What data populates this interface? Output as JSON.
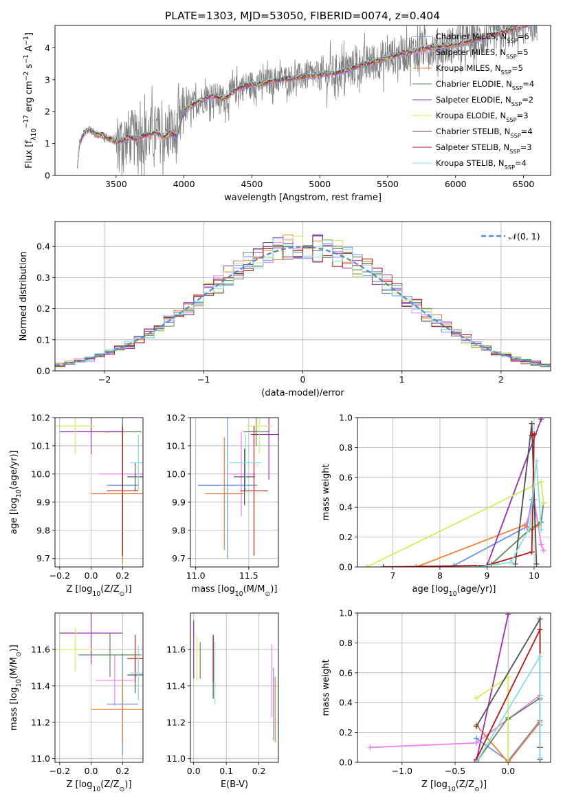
{
  "figure_title": "PLATE=1303, MJD=53050, FIBERID=0074, z=0.404",
  "colors": {
    "Chabrier MILES": "#6495ed",
    "Salpeter MILES": "#ee82ee",
    "Kroupa MILES": "#f08030",
    "Chabrier ELODIE": "#5f8a5f",
    "Salpeter ELODIE": "#9a2fb0",
    "Kroupa ELODIE": "#d4ec5a",
    "Chabrier STELIB": "#505050",
    "Salpeter STELIB": "#b01818",
    "Kroupa STELIB": "#88dde4",
    "normal": "#5a8ad0",
    "grid": "#b0b0b0"
  },
  "chart_data": [
    {
      "id": "spectrum",
      "type": "line",
      "title": "",
      "xlabel": "wavelength [Angstrom, rest frame]",
      "ylabel_parts": [
        "Flux [f",
        "λ",
        "10",
        "−17",
        " erg cm",
        "−2",
        " s",
        "−1",
        " A",
        "−1",
        "]"
      ],
      "xlim": [
        3050,
        6700
      ],
      "ylim": [
        0,
        4.7
      ],
      "xticks": [
        3500,
        4000,
        4500,
        5000,
        5500,
        6000,
        6500
      ],
      "yticks": [
        0,
        1,
        2,
        3,
        4
      ],
      "grid": false,
      "legend_position": "right",
      "legend": [
        {
          "label": "Chabrier MILES, N",
          "sub": "SSP",
          "suffix": "=6"
        },
        {
          "label": "Salpeter MILES, N",
          "sub": "SSP",
          "suffix": "=5"
        },
        {
          "label": "Kroupa MILES, N",
          "sub": "SSP",
          "suffix": "=5"
        },
        {
          "label": "Chabrier ELODIE, N",
          "sub": "SSP",
          "suffix": "=4"
        },
        {
          "label": "Salpeter ELODIE, N",
          "sub": "SSP",
          "suffix": "=2"
        },
        {
          "label": "Kroupa ELODIE, N",
          "sub": "SSP",
          "suffix": "=3"
        },
        {
          "label": "Chabrier STELIB, N",
          "sub": "SSP",
          "suffix": "=4"
        },
        {
          "label": "Salpeter STELIB, N",
          "sub": "SSP",
          "suffix": "=3"
        },
        {
          "label": "Kroupa STELIB, N",
          "sub": "SSP",
          "suffix": "=4"
        }
      ],
      "model_continuum": {
        "x": [
          3210,
          3230,
          3260,
          3300,
          3350,
          3400,
          3450,
          3500,
          3550,
          3600,
          3650,
          3700,
          3750,
          3800,
          3850,
          3900,
          3950,
          4000,
          4100,
          4200,
          4300,
          4400,
          4500,
          4600,
          4700,
          4800,
          4900,
          5000,
          5100,
          5200,
          5300,
          5400,
          5500,
          5600,
          5700,
          5800,
          5900,
          6000,
          6100,
          6200,
          6300,
          6400,
          6500,
          6600
        ],
        "y": [
          0.0,
          1.0,
          1.3,
          1.45,
          1.3,
          1.25,
          1.15,
          1.05,
          1.1,
          1.2,
          1.15,
          1.25,
          1.3,
          1.35,
          1.2,
          1.3,
          1.25,
          2.05,
          2.3,
          2.5,
          2.4,
          2.75,
          2.85,
          2.9,
          3.0,
          3.05,
          3.1,
          3.15,
          3.2,
          3.3,
          3.45,
          3.55,
          3.7,
          3.8,
          3.9,
          4.0,
          4.05,
          4.1,
          4.2,
          4.3,
          4.45,
          4.55,
          4.7,
          4.8
        ]
      }
    },
    {
      "id": "residuals",
      "type": "histogram",
      "xlabel": "(data-model)/error",
      "ylabel": "Normed distribution",
      "xlim": [
        -2.5,
        2.5
      ],
      "ylim": [
        0,
        0.48
      ],
      "xticks": [
        -2,
        -1,
        0,
        1,
        2
      ],
      "yticks": [
        0.0,
        0.1,
        0.2,
        0.3,
        0.4
      ],
      "grid": true,
      "legend_position": "top-right",
      "legend": [
        "𝒩(0, 1)"
      ],
      "bin_width": 0.1
    },
    {
      "id": "age-vs-Z",
      "type": "scatter",
      "xlabel_parts": [
        "Z [log",
        "10",
        "(Z/Z",
        "⊙",
        ")]"
      ],
      "ylabel_parts": [
        "age  [log",
        "10",
        "(age/yr)]"
      ],
      "xlim": [
        -0.23,
        0.33
      ],
      "ylim": [
        9.67,
        10.2
      ],
      "xticks": [
        -0.2,
        0.0,
        0.2
      ],
      "yticks": [
        9.7,
        9.8,
        9.9,
        10.0,
        10.1,
        10.2
      ],
      "grid": true,
      "points": [
        {
          "model": "Chabrier MILES",
          "x": 0.2,
          "xerr": 0.1,
          "y": 9.96,
          "yerr": 0.26
        },
        {
          "model": "Salpeter MILES",
          "x": 0.2,
          "xerr": 0.15,
          "y": 10.0,
          "yerr": 0.12
        },
        {
          "model": "Kroupa MILES",
          "x": 0.2,
          "xerr": 0.2,
          "y": 9.93,
          "yerr": 0.25
        },
        {
          "model": "Chabrier ELODIE",
          "x": 0.2,
          "xerr": 0.12,
          "y": 10.15,
          "yerr": 0.05
        },
        {
          "model": "Salpeter ELODIE",
          "x": 0.0,
          "xerr": 0.2,
          "y": 10.15,
          "yerr": 0.08
        },
        {
          "model": "Kroupa ELODIE",
          "x": -0.1,
          "xerr": 0.12,
          "y": 10.17,
          "yerr": 0.1
        },
        {
          "model": "Chabrier STELIB",
          "x": 0.28,
          "xerr": 0.05,
          "y": 9.99,
          "yerr": 0.05
        },
        {
          "model": "Salpeter STELIB",
          "x": 0.2,
          "xerr": 0.1,
          "y": 9.94,
          "yerr": 0.23
        },
        {
          "model": "Kroupa STELIB",
          "x": 0.3,
          "xerr": 0.05,
          "y": 10.04,
          "yerr": 0.1
        }
      ]
    },
    {
      "id": "age-vs-mass",
      "type": "scatter",
      "xlabel_parts": [
        "mass [log",
        "10",
        "(M/M",
        "⊙",
        ")]"
      ],
      "ylabel_parts": [],
      "xlim": [
        10.95,
        11.78
      ],
      "ylim": [
        9.67,
        10.2
      ],
      "xticks": [
        11.0,
        11.5
      ],
      "yticks": [
        9.7,
        9.8,
        9.9,
        10.0,
        10.1,
        10.2
      ],
      "grid": true,
      "points": [
        {
          "model": "Chabrier MILES",
          "x": 11.3,
          "xerr": 0.28,
          "y": 9.96,
          "yerr": 0.26
        },
        {
          "model": "Salpeter MILES",
          "x": 11.43,
          "xerr": 0.14,
          "y": 10.0,
          "yerr": 0.15
        },
        {
          "model": "Kroupa MILES",
          "x": 11.27,
          "xerr": 0.18,
          "y": 9.93,
          "yerr": 0.2
        },
        {
          "model": "Chabrier ELODIE",
          "x": 11.57,
          "xerr": 0.12,
          "y": 10.15,
          "yerr": 0.05
        },
        {
          "model": "Salpeter ELODIE",
          "x": 11.69,
          "xerr": 0.17,
          "y": 10.14,
          "yerr": 0.16
        },
        {
          "model": "Kroupa ELODIE",
          "x": 11.6,
          "xerr": 0.12,
          "y": 10.17,
          "yerr": 0.1
        },
        {
          "model": "Chabrier STELIB",
          "x": 11.46,
          "xerr": 0.1,
          "y": 9.99,
          "yerr": 0.1
        },
        {
          "model": "Salpeter STELIB",
          "x": 11.55,
          "xerr": 0.13,
          "y": 9.94,
          "yerr": 0.23
        },
        {
          "model": "Kroupa STELIB",
          "x": 11.47,
          "xerr": 0.15,
          "y": 10.04,
          "yerr": 0.1
        }
      ]
    },
    {
      "id": "weight-vs-age",
      "type": "line",
      "xlabel_parts": [
        "age  [log",
        "10",
        "(age/yr)]"
      ],
      "ylabel": "mass weight",
      "xlim": [
        6.25,
        10.35
      ],
      "ylim": [
        0,
        1
      ],
      "xticks": [
        7,
        8,
        9,
        10
      ],
      "yticks": [
        0.0,
        0.2,
        0.4,
        0.6,
        0.8,
        1.0
      ],
      "grid": true,
      "series": [
        {
          "model": "Chabrier MILES",
          "x": [
            8.3,
            9.85,
            9.95,
            10.1
          ],
          "y": [
            0.01,
            0.27,
            0.45,
            0.28
          ]
        },
        {
          "model": "Salpeter MILES",
          "x": [
            9.8,
            10.0,
            10.15,
            10.2
          ],
          "y": [
            0.26,
            0.45,
            0.15,
            0.11
          ]
        },
        {
          "model": "Kroupa MILES",
          "x": [
            7.5,
            9.8,
            9.95,
            10.1
          ],
          "y": [
            0.0,
            0.28,
            0.25,
            0.28
          ]
        },
        {
          "model": "Chabrier ELODIE",
          "x": [
            9.1,
            9.9,
            10.15,
            10.2
          ],
          "y": [
            0.02,
            0.25,
            0.3,
            0.43
          ]
        },
        {
          "model": "Salpeter ELODIE",
          "x": [
            9.0,
            10.15
          ],
          "y": [
            0.01,
            0.99
          ]
        },
        {
          "model": "Kroupa ELODIE",
          "x": [
            6.45,
            10.15,
            10.2
          ],
          "y": [
            0.0,
            0.57,
            0.43
          ]
        },
        {
          "model": "Chabrier STELIB",
          "x": [
            9.6,
            9.95,
            10.05
          ],
          "y": [
            0.02,
            0.96,
            0.02
          ]
        },
        {
          "model": "Salpeter STELIB",
          "x": [
            6.8,
            9.0,
            9.95,
            10.0,
            9.95
          ],
          "y": [
            0.0,
            0.01,
            0.1,
            0.89,
            0.88
          ]
        },
        {
          "model": "Kroupa STELIB",
          "x": [
            8.8,
            9.5,
            9.9,
            10.05,
            10.15
          ],
          "y": [
            0.0,
            0.03,
            0.26,
            0.71,
            0.25
          ]
        }
      ]
    },
    {
      "id": "mass-vs-Z",
      "type": "scatter",
      "xlabel_parts": [
        "Z [log",
        "10",
        "(Z/Z",
        "⊙",
        ")]"
      ],
      "ylabel_parts": [
        "mass [log",
        "10",
        "(M/M",
        "⊙",
        ")]"
      ],
      "xlim": [
        -0.23,
        0.33
      ],
      "ylim": [
        10.98,
        11.8
      ],
      "xticks": [
        -0.2,
        0.0,
        0.2
      ],
      "yticks": [
        11.0,
        11.2,
        11.4,
        11.6
      ],
      "grid": true,
      "points": [
        {
          "model": "Chabrier MILES",
          "x": 0.2,
          "xerr": 0.1,
          "y": 11.3,
          "yerr": 0.28
        },
        {
          "model": "Salpeter MILES",
          "x": 0.15,
          "xerr": 0.12,
          "y": 11.43,
          "yerr": 0.14
        },
        {
          "model": "Kroupa MILES",
          "x": 0.2,
          "xerr": 0.2,
          "y": 11.27,
          "yerr": 0.18
        },
        {
          "model": "Chabrier ELODIE",
          "x": 0.12,
          "xerr": 0.2,
          "y": 11.57,
          "yerr": 0.12
        },
        {
          "model": "Salpeter ELODIE",
          "x": 0.0,
          "xerr": 0.2,
          "y": 11.69,
          "yerr": 0.17
        },
        {
          "model": "Kroupa ELODIE",
          "x": -0.1,
          "xerr": 0.12,
          "y": 11.6,
          "yerr": 0.12
        },
        {
          "model": "Chabrier STELIB",
          "x": 0.28,
          "xerr": 0.05,
          "y": 11.46,
          "yerr": 0.1
        },
        {
          "model": "Salpeter STELIB",
          "x": 0.28,
          "xerr": 0.05,
          "y": 11.55,
          "yerr": 0.13
        },
        {
          "model": "Kroupa STELIB",
          "x": 0.3,
          "xerr": 0.05,
          "y": 11.47,
          "yerr": 0.15
        }
      ]
    },
    {
      "id": "mass-vs-EBV",
      "type": "scatter",
      "xlabel": "E(B-V)",
      "ylabel_parts": [],
      "xlim": [
        -0.01,
        0.26
      ],
      "ylim": [
        10.98,
        11.8
      ],
      "xticks": [
        0.0,
        0.1,
        0.2
      ],
      "yticks": [
        11.0,
        11.2,
        11.4,
        11.6
      ],
      "grid": true,
      "points": [
        {
          "model": "Chabrier MILES",
          "x": 0.245,
          "xerr": 0,
          "y": 11.3,
          "yerr": 0.2
        },
        {
          "model": "Salpeter MILES",
          "x": 0.24,
          "xerr": 0,
          "y": 11.43,
          "yerr": 0.2
        },
        {
          "model": "Kroupa MILES",
          "x": 0.25,
          "xerr": 0,
          "y": 11.27,
          "yerr": 0.18
        },
        {
          "model": "Chabrier ELODIE",
          "x": 0.02,
          "xerr": 0,
          "y": 11.54,
          "yerr": 0.1
        },
        {
          "model": "Salpeter ELODIE",
          "x": 0.0,
          "xerr": 0,
          "y": 11.6,
          "yerr": 0.16
        },
        {
          "model": "Kroupa ELODIE",
          "x": 0.01,
          "xerr": 0,
          "y": 11.55,
          "yerr": 0.12
        },
        {
          "model": "Chabrier STELIB",
          "x": 0.06,
          "xerr": 0,
          "y": 11.5,
          "yerr": 0.17
        },
        {
          "model": "Salpeter STELIB",
          "x": 0.06,
          "xerr": 0,
          "y": 11.55,
          "yerr": 0.13
        },
        {
          "model": "Kroupa STELIB",
          "x": 0.065,
          "xerr": 0,
          "y": 11.47,
          "yerr": 0.17
        }
      ]
    },
    {
      "id": "weight-vs-Z",
      "type": "line",
      "xlabel_parts": [
        "Z [log",
        "10",
        "(Z/Z",
        "⊙",
        ")]"
      ],
      "ylabel": "mass weight",
      "xlim": [
        -1.42,
        0.4
      ],
      "ylim": [
        0,
        1
      ],
      "xticks": [
        -1.0,
        -0.5,
        0.0
      ],
      "yticks": [
        0.0,
        0.2,
        0.4,
        0.6,
        0.8,
        1.0
      ],
      "grid": true,
      "series": [
        {
          "model": "Chabrier MILES",
          "x": [
            -0.3,
            0.0,
            0.3,
            0.3
          ],
          "y": [
            0.16,
            0.01,
            0.28,
            0.25
          ]
        },
        {
          "model": "Salpeter MILES",
          "x": [
            -1.3,
            -0.3,
            0.3,
            0.3
          ],
          "y": [
            0.1,
            0.13,
            0.45,
            0.42
          ]
        },
        {
          "model": "Kroupa MILES",
          "x": [
            -0.3,
            0.0,
            0.3
          ],
          "y": [
            0.25,
            0.0,
            0.27
          ]
        },
        {
          "model": "Chabrier ELODIE",
          "x": [
            -0.3,
            0.0,
            0.0,
            0.3
          ],
          "y": [
            0.0,
            0.3,
            0.29,
            0.43
          ]
        },
        {
          "model": "Salpeter ELODIE",
          "x": [
            -0.3,
            0.0
          ],
          "y": [
            0.01,
            0.99
          ]
        },
        {
          "model": "Kroupa ELODIE",
          "x": [
            -0.3,
            0.0,
            0.0
          ],
          "y": [
            0.43,
            0.57,
            0.0
          ]
        },
        {
          "model": "Chabrier STELIB",
          "x": [
            -0.3,
            0.3,
            0.3
          ],
          "y": [
            0.24,
            0.96,
            0.02
          ]
        },
        {
          "model": "Salpeter STELIB",
          "x": [
            -0.3,
            0.3,
            0.3
          ],
          "y": [
            0.02,
            0.89,
            0.1
          ]
        },
        {
          "model": "Kroupa STELIB",
          "x": [
            -0.3,
            0.3,
            0.3
          ],
          "y": [
            0.0,
            0.71,
            0.03
          ]
        }
      ]
    }
  ]
}
